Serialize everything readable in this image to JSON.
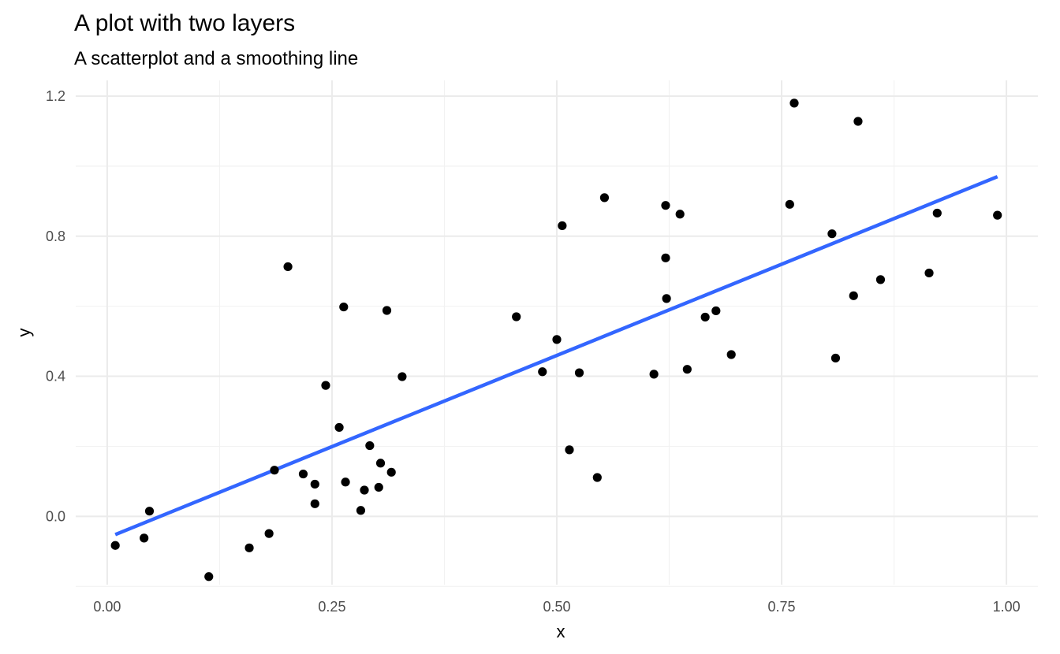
{
  "chart_data": {
    "type": "scatter",
    "title": "A plot with two layers",
    "subtitle": "A scatterplot and a smoothing line",
    "xlabel": "x",
    "ylabel": "y",
    "xlim": [
      -0.035,
      1.035
    ],
    "ylim": [
      -0.195,
      1.245
    ],
    "x_ticks": [
      0.0,
      0.25,
      0.5,
      0.75,
      1.0
    ],
    "x_tick_labels": [
      "0.00",
      "0.25",
      "0.50",
      "0.75",
      "1.00"
    ],
    "y_ticks": [
      0.0,
      0.4,
      0.8,
      1.2
    ],
    "y_tick_labels": [
      "0.0",
      "0.4",
      "0.8",
      "1.2"
    ],
    "x_minor": [
      0.125,
      0.375,
      0.625,
      0.875
    ],
    "y_minor": [
      -0.2,
      0.2,
      0.6,
      1.0
    ],
    "grid": true,
    "series": [
      {
        "type": "scatter",
        "color": "#000000",
        "points": [
          {
            "x": 0.009,
            "y": -0.083
          },
          {
            "x": 0.041,
            "y": -0.062
          },
          {
            "x": 0.047,
            "y": 0.015
          },
          {
            "x": 0.113,
            "y": -0.172
          },
          {
            "x": 0.158,
            "y": -0.09
          },
          {
            "x": 0.18,
            "y": -0.049
          },
          {
            "x": 0.186,
            "y": 0.132
          },
          {
            "x": 0.201,
            "y": 0.713
          },
          {
            "x": 0.218,
            "y": 0.121
          },
          {
            "x": 0.231,
            "y": 0.092
          },
          {
            "x": 0.231,
            "y": 0.036
          },
          {
            "x": 0.243,
            "y": 0.374
          },
          {
            "x": 0.258,
            "y": 0.254
          },
          {
            "x": 0.263,
            "y": 0.598
          },
          {
            "x": 0.265,
            "y": 0.098
          },
          {
            "x": 0.282,
            "y": 0.017
          },
          {
            "x": 0.286,
            "y": 0.075
          },
          {
            "x": 0.292,
            "y": 0.202
          },
          {
            "x": 0.302,
            "y": 0.083
          },
          {
            "x": 0.304,
            "y": 0.152
          },
          {
            "x": 0.311,
            "y": 0.588
          },
          {
            "x": 0.316,
            "y": 0.126
          },
          {
            "x": 0.328,
            "y": 0.399
          },
          {
            "x": 0.455,
            "y": 0.57
          },
          {
            "x": 0.484,
            "y": 0.413
          },
          {
            "x": 0.5,
            "y": 0.505
          },
          {
            "x": 0.506,
            "y": 0.83
          },
          {
            "x": 0.514,
            "y": 0.19
          },
          {
            "x": 0.525,
            "y": 0.41
          },
          {
            "x": 0.545,
            "y": 0.111
          },
          {
            "x": 0.553,
            "y": 0.91
          },
          {
            "x": 0.608,
            "y": 0.406
          },
          {
            "x": 0.621,
            "y": 0.888
          },
          {
            "x": 0.621,
            "y": 0.738
          },
          {
            "x": 0.622,
            "y": 0.622
          },
          {
            "x": 0.637,
            "y": 0.863
          },
          {
            "x": 0.645,
            "y": 0.42
          },
          {
            "x": 0.665,
            "y": 0.569
          },
          {
            "x": 0.677,
            "y": 0.587
          },
          {
            "x": 0.694,
            "y": 0.462
          },
          {
            "x": 0.759,
            "y": 0.891
          },
          {
            "x": 0.764,
            "y": 1.18
          },
          {
            "x": 0.806,
            "y": 0.807
          },
          {
            "x": 0.81,
            "y": 0.452
          },
          {
            "x": 0.83,
            "y": 0.63
          },
          {
            "x": 0.835,
            "y": 1.128
          },
          {
            "x": 0.86,
            "y": 0.676
          },
          {
            "x": 0.914,
            "y": 0.695
          },
          {
            "x": 0.923,
            "y": 0.866
          },
          {
            "x": 0.99,
            "y": 0.86
          }
        ]
      },
      {
        "type": "line",
        "color": "#3366ff",
        "points": [
          {
            "x": 0.009,
            "y": -0.052
          },
          {
            "x": 0.99,
            "y": 0.97
          }
        ]
      }
    ]
  }
}
